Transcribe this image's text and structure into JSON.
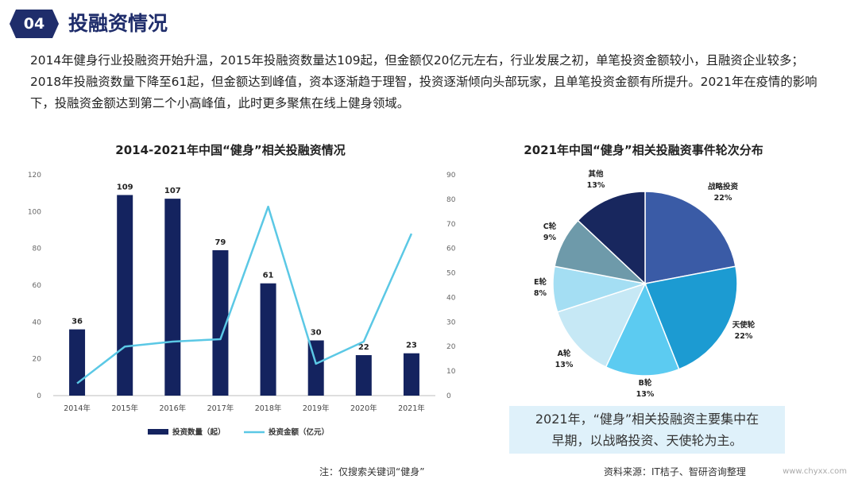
{
  "header": {
    "badge": "04",
    "title": "投融资情况"
  },
  "intro": "2014年健身行业投融资开始升温，2015年投融资数量达109起，但金额仅20亿元左右，行业发展之初，单笔投资金额较小，且融资企业较多；2018年投融资数量下降至61起，但金额达到峰值，资本逐渐趋于理智，投资逐渐倾向头部玩家，且单笔投资金额有所提升。2021年在疫情的影响下，投融资金额达到第二个小高峰值，此时更多聚焦在线上健身领域。",
  "chart_data": [
    {
      "type": "bar",
      "title": "2014-2021年中国“健身”相关投融资情况",
      "categories": [
        "2014年",
        "2015年",
        "2016年",
        "2017年",
        "2018年",
        "2019年",
        "2020年",
        "2021年"
      ],
      "series": [
        {
          "name": "投资数量（起）",
          "kind": "bar",
          "axis": "left",
          "color": "#14235f",
          "values": [
            36,
            109,
            107,
            79,
            61,
            30,
            22,
            23
          ]
        },
        {
          "name": "投资金额（亿元）",
          "kind": "line",
          "axis": "right",
          "color": "#5bc8e5",
          "values": [
            5,
            20,
            22,
            23,
            77,
            13,
            22,
            66
          ]
        }
      ],
      "ylim_left": [
        0,
        120
      ],
      "yticks_left": [
        0,
        20,
        40,
        60,
        80,
        100,
        120
      ],
      "ylim_right": [
        0,
        90
      ],
      "yticks_right": [
        0,
        10,
        20,
        30,
        40,
        50,
        60,
        70,
        80,
        90
      ],
      "legend": "bottom",
      "data_labels": true
    },
    {
      "type": "pie",
      "title": "2021年中国“健身”相关投融资事件轮次分布",
      "slices": [
        {
          "name": "战略投资",
          "value": 22,
          "label": "22%",
          "color": "#3a5ba6"
        },
        {
          "name": "天使轮",
          "value": 22,
          "label": "22%",
          "color": "#1c9bd2"
        },
        {
          "name": "B轮",
          "value": 13,
          "label": "13%",
          "color": "#5ccbf1"
        },
        {
          "name": "A轮",
          "value": 13,
          "label": "13%",
          "color": "#c6e8f5"
        },
        {
          "name": "E轮",
          "value": 8,
          "label": "8%",
          "color": "#a4def3"
        },
        {
          "name": "C轮",
          "value": 9,
          "label": "9%",
          "color": "#6e9aaa"
        },
        {
          "name": "其他",
          "value": 13,
          "label": "13%",
          "color": "#18275e"
        }
      ]
    }
  ],
  "callout": {
    "line1": "2021年，“健身”相关投融资主要集中在",
    "line2": "早期，以战略投资、天使轮为主。"
  },
  "footnote": "注：仅搜索关键词“健身”",
  "source": "资料来源：IT桔子、智研咨询整理",
  "watermark": "www.chyxx.com"
}
